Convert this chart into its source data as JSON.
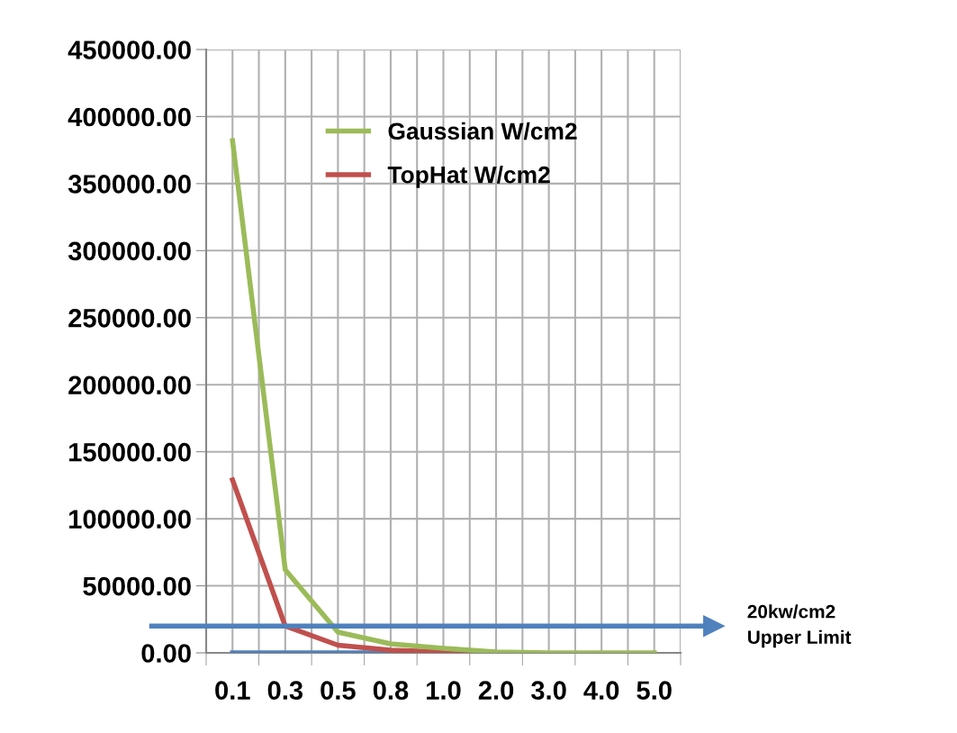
{
  "chart_data": {
    "type": "line",
    "categories": [
      "0.1",
      "0.3",
      "0.5",
      "0.8",
      "1.0",
      "2.0",
      "3.0",
      "4.0",
      "5.0"
    ],
    "series": [
      {
        "name": "Gaussian W/cm2",
        "color": "#9bbb59",
        "values": [
          382000,
          62000,
          15400,
          6700,
          3400,
          700,
          0,
          0,
          0
        ]
      },
      {
        "name": "TopHat W/cm2",
        "color": "#c0504d",
        "values": [
          129000,
          20000,
          5700,
          2000,
          700,
          0,
          null,
          null,
          null
        ]
      },
      {
        "color": "#4f81bd",
        "values": [
          0,
          0,
          0,
          0,
          null,
          null,
          null,
          null,
          null
        ]
      }
    ],
    "ylim": [
      0,
      450000
    ],
    "yticks": [
      {
        "value": 0,
        "label": "0.00"
      },
      {
        "value": 50000,
        "label": "50000.00"
      },
      {
        "value": 100000,
        "label": "100000.00"
      },
      {
        "value": 150000,
        "label": "150000.00"
      },
      {
        "value": 200000,
        "label": "200000.00"
      },
      {
        "value": 250000,
        "label": "250000.00"
      },
      {
        "value": 300000,
        "label": "300000.00"
      },
      {
        "value": 350000,
        "label": "350000.00"
      },
      {
        "value": 400000,
        "label": "400000.00"
      },
      {
        "value": 450000,
        "label": "450000.00"
      }
    ],
    "ref_lines": [
      {
        "axis": "y",
        "value": 20000,
        "label": "20kw/cm2\nUpper Limit",
        "color": "#4f81bd"
      }
    ],
    "grid": true,
    "legend": "top",
    "marker": "none",
    "line_style": "solid"
  }
}
